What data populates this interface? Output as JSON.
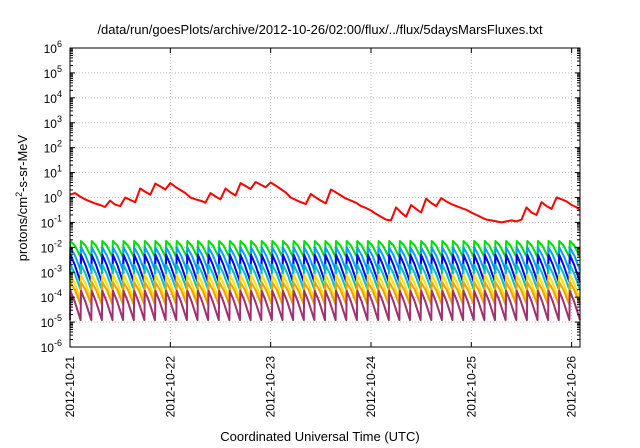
{
  "chart_data": {
    "type": "line",
    "title": "/data/run/goesPlots/archive/2012-10-26/02:00/flux/../flux/5daysMarsFluxes.txt",
    "xlabel": "Coordinated Universal Time (UTC)",
    "ylabel": {
      "prefix": "protons/cm",
      "sup": "2",
      "suffix": "-s-sr-MeV"
    },
    "yscale": "log",
    "ylim": [
      1e-06,
      1000000.0
    ],
    "xlim": [
      "2012-10-21",
      "2012-10-26 02:00"
    ],
    "x_ticks": [
      "2012-10-21",
      "2012-10-22",
      "2012-10-23",
      "2012-10-24",
      "2012-10-25",
      "2012-10-26"
    ],
    "y_ticks": [
      {
        "base": "10",
        "exp": "-6"
      },
      {
        "base": "10",
        "exp": "-5"
      },
      {
        "base": "10",
        "exp": "-4"
      },
      {
        "base": "10",
        "exp": "-3"
      },
      {
        "base": "10",
        "exp": "-2"
      },
      {
        "base": "10",
        "exp": "-1"
      },
      {
        "base": "10",
        "exp": "0"
      },
      {
        "base": "10",
        "exp": "1"
      },
      {
        "base": "10",
        "exp": "2"
      },
      {
        "base": "10",
        "exp": "3"
      },
      {
        "base": "10",
        "exp": "4"
      },
      {
        "base": "10",
        "exp": "5"
      },
      {
        "base": "10",
        "exp": "6"
      }
    ],
    "grid": true,
    "series": [
      {
        "color": "#ff0000",
        "x": [
          "2012-10-21 00:00",
          "2012-10-21 01:12",
          "2012-10-21 02:24",
          "2012-10-21 03:36",
          "2012-10-21 04:48",
          "2012-10-21 06:00",
          "2012-10-21 07:12",
          "2012-10-21 08:24",
          "2012-10-21 09:36",
          "2012-10-21 10:48",
          "2012-10-21 12:00",
          "2012-10-21 13:12",
          "2012-10-21 14:24",
          "2012-10-21 15:36",
          "2012-10-21 16:48",
          "2012-10-21 18:00",
          "2012-10-21 19:12",
          "2012-10-21 20:24",
          "2012-10-21 21:36",
          "2012-10-21 22:48",
          "2012-10-22 00:00",
          "2012-10-22 01:12",
          "2012-10-22 02:24",
          "2012-10-22 03:36",
          "2012-10-22 04:48",
          "2012-10-22 06:00",
          "2012-10-22 07:12",
          "2012-10-22 08:24",
          "2012-10-22 09:36",
          "2012-10-22 10:48",
          "2012-10-22 12:00",
          "2012-10-22 13:12",
          "2012-10-22 14:24",
          "2012-10-22 15:36",
          "2012-10-22 16:48",
          "2012-10-22 18:00",
          "2012-10-22 19:12",
          "2012-10-22 20:24",
          "2012-10-22 21:36",
          "2012-10-22 22:48",
          "2012-10-23 00:00",
          "2012-10-23 01:12",
          "2012-10-23 02:24",
          "2012-10-23 03:36",
          "2012-10-23 04:48",
          "2012-10-23 06:00",
          "2012-10-23 07:12",
          "2012-10-23 08:24",
          "2012-10-23 09:36",
          "2012-10-23 10:48",
          "2012-10-23 12:00",
          "2012-10-23 13:12",
          "2012-10-23 14:24",
          "2012-10-23 15:36",
          "2012-10-23 16:48",
          "2012-10-23 18:00",
          "2012-10-23 19:12",
          "2012-10-23 20:24",
          "2012-10-23 21:36",
          "2012-10-23 22:48",
          "2012-10-24 00:00",
          "2012-10-24 01:12",
          "2012-10-24 02:24",
          "2012-10-24 03:36",
          "2012-10-24 04:48",
          "2012-10-24 06:00",
          "2012-10-24 07:12",
          "2012-10-24 08:24",
          "2012-10-24 09:36",
          "2012-10-24 10:48",
          "2012-10-24 12:00",
          "2012-10-24 13:12",
          "2012-10-24 14:24",
          "2012-10-24 15:36",
          "2012-10-24 16:48",
          "2012-10-24 18:00",
          "2012-10-24 19:12",
          "2012-10-24 20:24",
          "2012-10-24 21:36",
          "2012-10-24 22:48",
          "2012-10-25 00:00",
          "2012-10-25 01:12",
          "2012-10-25 02:24",
          "2012-10-25 03:36",
          "2012-10-25 04:48",
          "2012-10-25 06:00",
          "2012-10-25 07:12",
          "2012-10-25 08:24",
          "2012-10-25 09:36",
          "2012-10-25 10:48",
          "2012-10-25 12:00",
          "2012-10-25 13:12",
          "2012-10-25 14:24",
          "2012-10-25 15:36",
          "2012-10-25 16:48",
          "2012-10-25 18:00",
          "2012-10-25 19:12",
          "2012-10-25 20:24",
          "2012-10-25 21:36",
          "2012-10-25 22:48",
          "2012-10-26 00:00",
          "2012-10-26 01:12",
          "2012-10-26 02:00"
        ],
        "y": [
          1.3,
          1.5,
          1.1,
          0.85,
          0.7,
          0.58,
          0.5,
          0.42,
          0.75,
          0.52,
          0.45,
          1.0,
          0.8,
          0.65,
          2.3,
          1.7,
          1.3,
          3.6,
          2.8,
          2.1,
          3.8,
          2.7,
          2.0,
          1.5,
          1.0,
          0.85,
          0.75,
          0.62,
          1.5,
          1.1,
          0.85,
          2.3,
          1.6,
          1.2,
          3.8,
          2.9,
          2.2,
          4.2,
          3.3,
          2.6,
          4.0,
          3.0,
          2.2,
          1.6,
          1.0,
          0.8,
          0.65,
          0.55,
          1.4,
          1.0,
          0.75,
          0.58,
          2.1,
          1.6,
          1.2,
          0.9,
          0.75,
          0.62,
          0.45,
          0.38,
          0.3,
          0.22,
          0.17,
          0.13,
          0.12,
          0.4,
          0.25,
          0.17,
          0.5,
          0.35,
          0.25,
          0.9,
          0.6,
          0.45,
          0.95,
          0.7,
          0.55,
          0.45,
          0.38,
          0.32,
          0.25,
          0.2,
          0.16,
          0.13,
          0.12,
          0.11,
          0.1,
          0.11,
          0.12,
          0.11,
          0.13,
          0.4,
          0.25,
          0.2,
          0.65,
          0.45,
          0.35,
          1.0,
          0.85,
          0.7,
          0.5,
          0.4,
          0.3
        ]
      },
      {
        "color": "#00e000",
        "x_range": [
          "2012-10-21 00:00",
          "2012-10-26 02:00"
        ],
        "cycles": 48,
        "min": 0.004,
        "max": 0.018
      },
      {
        "color": "#00a0ff",
        "x_range": [
          "2012-10-21 00:00",
          "2012-10-26 02:00"
        ],
        "cycles": 48,
        "min": 0.0012,
        "max": 0.01
      },
      {
        "color": "#0000ff",
        "x_range": [
          "2012-10-21 00:00",
          "2012-10-26 02:00"
        ],
        "cycles": 48,
        "min": 0.0004,
        "max": 0.005
      },
      {
        "color": "#00c0c0",
        "x_range": [
          "2012-10-21 00:00",
          "2012-10-26 02:00"
        ],
        "cycles": 48,
        "min": 0.0002,
        "max": 0.002
      },
      {
        "color": "#ffe000",
        "x_range": [
          "2012-10-21 00:00",
          "2012-10-26 02:00"
        ],
        "cycles": 48,
        "min": 8e-05,
        "max": 0.0008
      },
      {
        "color": "#f0a000",
        "x_range": [
          "2012-10-21 00:00",
          "2012-10-26 02:00"
        ],
        "cycles": 48,
        "min": 5e-05,
        "max": 0.0004
      },
      {
        "color": "#a03070",
        "x_range": [
          "2012-10-21 00:00",
          "2012-10-26 02:00"
        ],
        "cycles": 48,
        "min": 1.2e-05,
        "max": 0.00018
      }
    ]
  }
}
